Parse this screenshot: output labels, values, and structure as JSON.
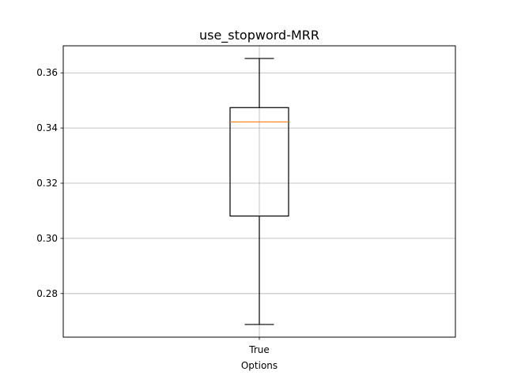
{
  "chart_data": {
    "type": "boxplot",
    "title": "use_stopword-MRR",
    "xlabel": "Options",
    "ylabel": "",
    "categories": [
      "True"
    ],
    "ylim": [
      0.2642,
      0.3698
    ],
    "yticks": [
      0.28,
      0.3,
      0.32,
      0.34,
      0.36
    ],
    "ytick_labels": [
      "0.28",
      "0.30",
      "0.32",
      "0.34",
      "0.36"
    ],
    "grid": true,
    "boxes": [
      {
        "category": "True",
        "whisker_low": 0.2688,
        "q1": 0.3081,
        "median": 0.3422,
        "q3": 0.3474,
        "whisker_high": 0.3652
      }
    ],
    "colors": {
      "box": "#000000",
      "median": "#ff7f0e",
      "grid": "#b0b0b0",
      "axes": "#000000"
    }
  }
}
